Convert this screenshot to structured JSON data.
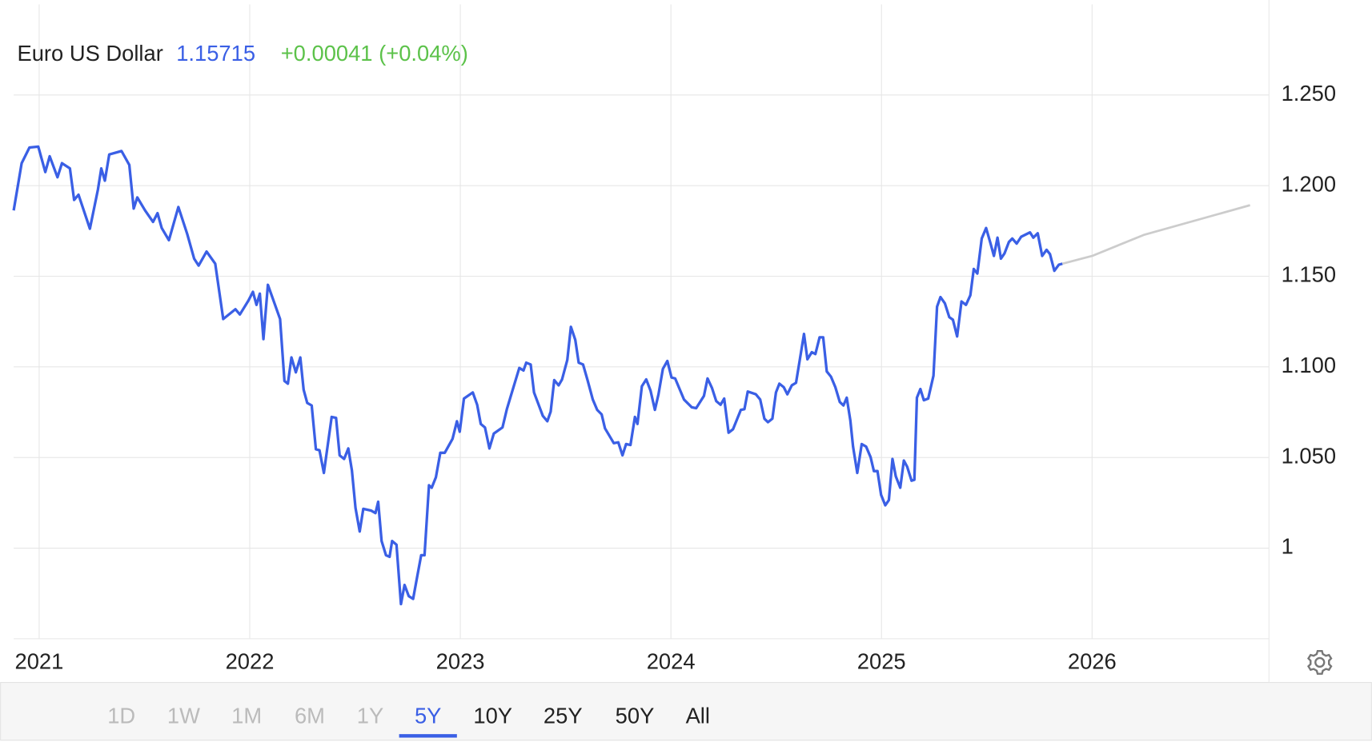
{
  "chart_data": {
    "type": "line",
    "title": "Euro US Dollar",
    "price": 1.15715,
    "change": "+0.00041 (+0.04%)",
    "price_color": "#3a5fe5",
    "change_color": "#5cc24a",
    "xlim": [
      2020.879,
      2026.84
    ],
    "xticks": [
      2021,
      2022,
      2023,
      2024,
      2025,
      2026
    ],
    "ylim": [
      0.95,
      1.3
    ],
    "yticks": [
      1,
      {
        "value": 1.05,
        "label": "1.050"
      },
      {
        "value": 1.1,
        "label": "1.100"
      },
      {
        "value": 1.15,
        "label": "1.150"
      },
      {
        "value": 1.2,
        "label": "1.200"
      },
      {
        "value": 1.25,
        "label": "1.250"
      }
    ],
    "grid": true,
    "series": [
      {
        "color": "#3a5fe5",
        "x": [
          2020.879,
          2020.917,
          2020.954,
          2020.996,
          2021.029,
          2021.05,
          2021.087,
          2021.108,
          2021.146,
          2021.166,
          2021.187,
          2021.241,
          2021.279,
          2021.295,
          2021.312,
          2021.333,
          2021.391,
          2021.428,
          2021.449,
          2021.466,
          2021.503,
          2021.541,
          2021.562,
          2021.582,
          2021.616,
          2021.661,
          2021.703,
          2021.736,
          2021.757,
          2021.795,
          2021.836,
          2021.874,
          2021.932,
          2021.953,
          2021.994,
          2022.015,
          2022.032,
          2022.048,
          2022.065,
          2022.086,
          2022.123,
          2022.144,
          2022.165,
          2022.181,
          2022.198,
          2022.219,
          2022.24,
          2022.256,
          2022.273,
          2022.294,
          2022.314,
          2022.331,
          2022.352,
          2022.389,
          2022.41,
          2022.427,
          2022.448,
          2022.468,
          2022.485,
          2022.502,
          2022.522,
          2022.539,
          2022.577,
          2022.597,
          2022.61,
          2022.626,
          2022.647,
          2022.664,
          2022.676,
          2022.697,
          2022.718,
          2022.735,
          2022.755,
          2022.776,
          2022.797,
          2022.814,
          2022.83,
          2022.851,
          2022.864,
          2022.884,
          2022.905,
          2022.926,
          2022.963,
          2022.984,
          2022.997,
          2023.017,
          2023.059,
          2023.08,
          2023.097,
          2023.117,
          2023.138,
          2023.159,
          2023.2,
          2023.221,
          2023.242,
          2023.28,
          2023.3,
          2023.313,
          2023.334,
          2023.35,
          2023.392,
          2023.413,
          2023.429,
          2023.446,
          2023.467,
          2023.483,
          2023.508,
          2023.525,
          2023.546,
          2023.562,
          2023.583,
          2023.604,
          2023.629,
          2023.65,
          2023.671,
          2023.687,
          2023.729,
          2023.75,
          2023.77,
          2023.787,
          2023.808,
          2023.829,
          2023.841,
          2023.862,
          2023.883,
          2023.903,
          2023.924,
          2023.941,
          2023.962,
          2023.983,
          2024.003,
          2024.02,
          2024.062,
          2024.099,
          2024.12,
          2024.157,
          2024.174,
          2024.195,
          2024.215,
          2024.236,
          2024.253,
          2024.274,
          2024.295,
          2024.332,
          2024.349,
          2024.365,
          2024.403,
          2024.424,
          2024.444,
          2024.461,
          2024.482,
          2024.499,
          2024.515,
          2024.536,
          2024.553,
          2024.574,
          2024.594,
          2024.611,
          2024.632,
          2024.648,
          2024.669,
          2024.686,
          2024.706,
          2024.723,
          2024.74,
          2024.76,
          2024.781,
          2024.802,
          2024.819,
          2024.835,
          2024.852,
          2024.865,
          2024.885,
          2024.906,
          2024.927,
          2024.948,
          2024.964,
          2024.981,
          2024.998,
          2025.018,
          2025.035,
          2025.052,
          2025.068,
          2025.089,
          2025.106,
          2025.122,
          2025.143,
          2025.156,
          2025.168,
          2025.185,
          2025.201,
          2025.222,
          2025.247,
          2025.264,
          2025.28,
          2025.301,
          2025.322,
          2025.339,
          2025.359,
          2025.38,
          2025.401,
          2025.422,
          2025.438,
          2025.455,
          2025.476,
          2025.497,
          2025.518,
          2025.534,
          2025.551,
          2025.567,
          2025.584,
          2025.605,
          2025.621,
          2025.642,
          2025.663,
          2025.705,
          2025.721,
          2025.742,
          2025.763,
          2025.784,
          2025.8,
          2025.821,
          2025.842,
          2025.859
        ],
        "values": [
          1.1863,
          1.2124,
          1.221,
          1.2215,
          1.2075,
          1.2162,
          1.2046,
          1.2124,
          1.2095,
          1.1921,
          1.195,
          1.1762,
          1.1979,
          1.2095,
          1.2027,
          1.2172,
          1.2191,
          1.2114,
          1.1873,
          1.1935,
          1.1863,
          1.18,
          1.1848,
          1.1766,
          1.1699,
          1.1882,
          1.1733,
          1.1597,
          1.1559,
          1.1636,
          1.1569,
          1.1264,
          1.1318,
          1.1289,
          1.1366,
          1.1414,
          1.1342,
          1.1404,
          1.1153,
          1.1453,
          1.1332,
          1.1264,
          1.0922,
          1.0907,
          1.1052,
          1.097,
          1.1052,
          1.0874,
          1.0801,
          1.0787,
          1.0545,
          1.054,
          1.0415,
          1.0724,
          1.0719,
          1.0512,
          1.0492,
          1.055,
          1.0429,
          1.0222,
          1.0092,
          1.0217,
          1.0207,
          1.0193,
          1.0256,
          1.0039,
          0.9961,
          0.9952,
          1.0039,
          1.0019,
          0.9691,
          0.9797,
          0.9735,
          0.972,
          0.9855,
          0.9961,
          0.9961,
          1.0347,
          1.0333,
          1.0391,
          1.0526,
          1.0526,
          1.0603,
          1.07,
          1.0642,
          1.0825,
          1.0859,
          1.0791,
          1.0685,
          1.0666,
          1.055,
          1.0632,
          1.0666,
          1.0767,
          1.0849,
          1.0994,
          1.098,
          1.1023,
          1.1013,
          1.0859,
          1.0729,
          1.07,
          1.0753,
          1.0927,
          1.0898,
          1.0931,
          1.1038,
          1.1221,
          1.1149,
          1.1023,
          1.1013,
          1.0927,
          1.082,
          1.0763,
          1.0738,
          1.0661,
          1.0579,
          1.0584,
          1.0512,
          1.0574,
          1.0569,
          1.0724,
          1.0685,
          1.0893,
          1.0931,
          1.0869,
          1.0763,
          1.0849,
          1.0989,
          1.1033,
          1.0941,
          1.0936,
          1.082,
          1.0777,
          1.0772,
          1.084,
          1.0936,
          1.0883,
          1.0811,
          1.0791,
          1.0825,
          1.0637,
          1.0656,
          1.0763,
          1.0767,
          1.0864,
          1.0849,
          1.082,
          1.0714,
          1.0695,
          1.0714,
          1.0859,
          1.0907,
          1.0888,
          1.0849,
          1.0898,
          1.0912,
          1.1033,
          1.1182,
          1.1042,
          1.1081,
          1.1071,
          1.1163,
          1.1163,
          1.0975,
          1.0946,
          1.0888,
          1.0806,
          1.0787,
          1.083,
          1.0705,
          1.056,
          1.0415,
          1.0574,
          1.056,
          1.0502,
          1.0425,
          1.0425,
          1.0294,
          1.0236,
          1.0265,
          1.0492,
          1.0396,
          1.0333,
          1.0483,
          1.0449,
          1.0372,
          1.0377,
          1.083,
          1.0878,
          1.0816,
          1.0825,
          1.0951,
          1.1332,
          1.1385,
          1.1351,
          1.1274,
          1.126,
          1.1168,
          1.1361,
          1.1342,
          1.1395,
          1.154,
          1.1515,
          1.1708,
          1.1766,
          1.168,
          1.1612,
          1.1713,
          1.1597,
          1.1626,
          1.1689,
          1.1708,
          1.168,
          1.1718,
          1.1742,
          1.1713,
          1.1737,
          1.1612,
          1.1646,
          1.1622,
          1.153,
          1.1564,
          1.1569
        ]
      },
      {
        "color": "#cccccc",
        "x": [
          2025.859,
          2026.0,
          2026.245,
          2026.75
        ],
        "values": [
          1.1569,
          1.1612,
          1.1728,
          1.1892
        ]
      }
    ],
    "range_buttons": [
      "1D",
      "1W",
      "1M",
      "6M",
      "1Y",
      "5Y",
      "10Y",
      "25Y",
      "50Y",
      "All"
    ],
    "selected_range_index": 5
  }
}
